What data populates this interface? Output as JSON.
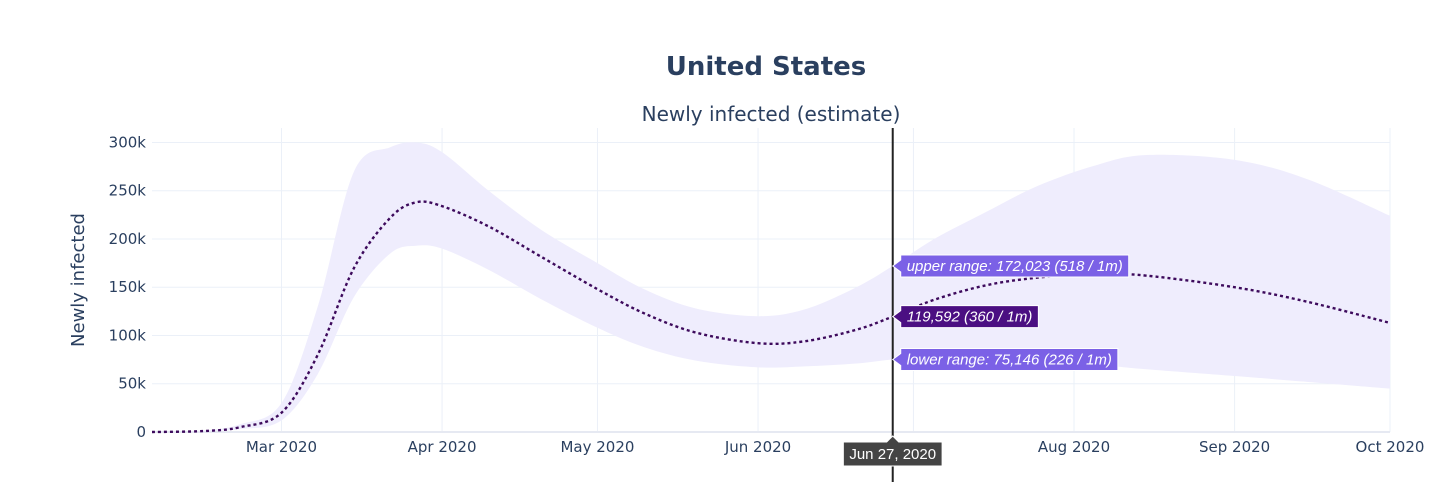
{
  "title": "United States",
  "chart_data": {
    "type": "line",
    "subtitle": "Newly infected (estimate)",
    "ylabel": "Newly infected",
    "xlabel": "",
    "x_range": [
      "2020-02-05",
      "2020-10-01"
    ],
    "ylim": [
      0,
      315000
    ],
    "grid": true,
    "x_ticks": [
      {
        "date": "2020-03-01",
        "label": "Mar 2020"
      },
      {
        "date": "2020-04-01",
        "label": "Apr 2020"
      },
      {
        "date": "2020-05-01",
        "label": "May 2020"
      },
      {
        "date": "2020-06-01",
        "label": "Jun 2020"
      },
      {
        "date": "2020-07-01",
        "label": ""
      },
      {
        "date": "2020-08-01",
        "label": "Aug 2020"
      },
      {
        "date": "2020-09-01",
        "label": "Sep 2020"
      },
      {
        "date": "2020-10-01",
        "label": "Oct 2020"
      }
    ],
    "y_ticks": [
      {
        "value": 0,
        "label": "0"
      },
      {
        "value": 50000,
        "label": "50k"
      },
      {
        "value": 100000,
        "label": "100k"
      },
      {
        "value": 150000,
        "label": "150k"
      },
      {
        "value": 200000,
        "label": "200k"
      },
      {
        "value": 250000,
        "label": "250k"
      },
      {
        "value": 300000,
        "label": "300k"
      }
    ],
    "colors": {
      "estimate": "#3d0a5c",
      "band": "#efedfd",
      "hover_range": "#7b61e6",
      "hover_main": "#4b0f82",
      "hover_x": "#444444",
      "grid": "#ebf0f8",
      "spike": "#222222"
    },
    "series": [
      {
        "x": [
          "2020-02-05",
          "2020-02-15",
          "2020-02-22",
          "2020-03-01",
          "2020-03-08",
          "2020-03-15",
          "2020-03-22",
          "2020-03-27",
          "2020-04-01",
          "2020-04-10",
          "2020-04-20",
          "2020-05-01",
          "2020-05-10",
          "2020-05-20",
          "2020-06-01",
          "2020-06-10",
          "2020-06-20",
          "2020-06-27",
          "2020-07-05",
          "2020-07-15",
          "2020-07-25",
          "2020-08-05",
          "2020-08-15",
          "2020-09-01",
          "2020-09-15",
          "2020-10-01"
        ],
        "values": [
          0,
          1000,
          5000,
          20000,
          80000,
          170000,
          222000,
          238000,
          234000,
          213000,
          182000,
          148000,
          123000,
          103000,
          92000,
          94000,
          106000,
          119592,
          137000,
          152000,
          160000,
          164000,
          162000,
          150000,
          135000,
          113000
        ]
      }
    ],
    "band": {
      "x": [
        "2020-02-05",
        "2020-02-15",
        "2020-02-22",
        "2020-03-01",
        "2020-03-08",
        "2020-03-15",
        "2020-03-22",
        "2020-03-27",
        "2020-04-01",
        "2020-04-10",
        "2020-04-20",
        "2020-05-01",
        "2020-05-10",
        "2020-05-20",
        "2020-06-01",
        "2020-06-10",
        "2020-06-20",
        "2020-06-27",
        "2020-07-05",
        "2020-07-15",
        "2020-07-25",
        "2020-08-05",
        "2020-08-15",
        "2020-09-01",
        "2020-09-15",
        "2020-10-01"
      ],
      "upper": [
        0,
        1500,
        8000,
        30000,
        130000,
        270000,
        295000,
        300000,
        290000,
        250000,
        210000,
        175000,
        148000,
        128000,
        120000,
        127000,
        150000,
        172023,
        200000,
        228000,
        255000,
        276000,
        287000,
        282000,
        262000,
        224000
      ],
      "lower": [
        0,
        800,
        3000,
        12000,
        60000,
        140000,
        185000,
        193000,
        190000,
        168000,
        138000,
        108000,
        88000,
        74000,
        67000,
        68000,
        71000,
        75146,
        77000,
        75000,
        74000,
        70000,
        65000,
        58000,
        52000,
        45000
      ]
    },
    "hover": {
      "x_label": "Jun 27, 2020",
      "upper_label": "upper range: 172,023 (518 / 1m)",
      "value_label": "119,592 (360 / 1m)",
      "lower_label": "lower range: 75,146 (226 / 1m)",
      "x": "2020-06-27",
      "upper": 172023,
      "value": 119592,
      "lower": 75146
    }
  }
}
